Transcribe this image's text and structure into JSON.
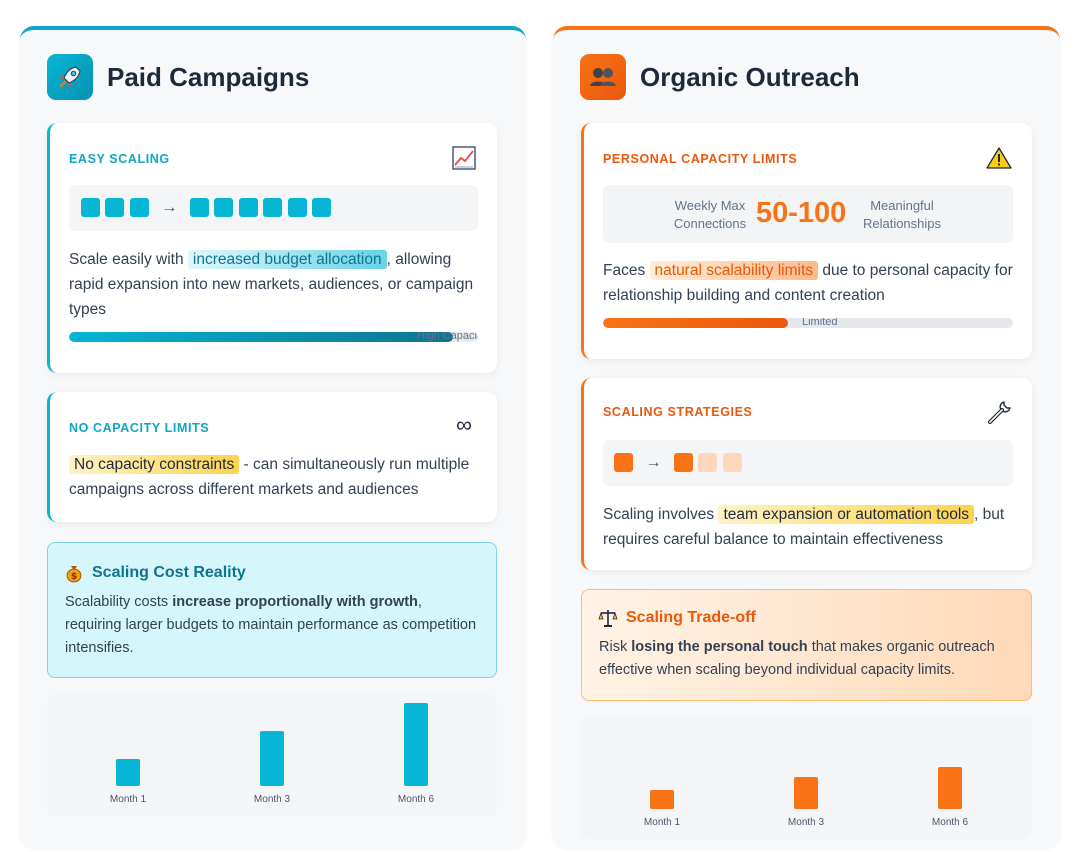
{
  "paid": {
    "title": "Paid Campaigns",
    "icon": "rocket-icon",
    "accent": "#06b6d4",
    "easy_scaling": {
      "label": "EASY SCALING",
      "icon": "chart-increasing-icon",
      "text_before": "Scale easily with ",
      "highlight": "increased budget allocation",
      "text_after": ", allowing rapid expansion into new markets, audiences, or campaign types",
      "bar_label": "High Capacity",
      "bar_level": 0.94
    },
    "no_limits": {
      "label": "NO CAPACITY LIMITS",
      "icon": "infinity-icon",
      "icon_glyph": "∞",
      "highlight": "No capacity constraints",
      "text_after": " - can simultaneously run multiple campaigns across different markets and audiences"
    },
    "note": {
      "icon": "money-bag-icon",
      "title": "Scaling Cost Reality",
      "text_before": "Scalability costs ",
      "text_bold": "increase proportionally with growth",
      "text_after": ", requiring larger budgets to maintain performance as competition intensifies."
    },
    "chart_data": {
      "type": "bar",
      "categories": [
        "Month 1",
        "Month 3",
        "Month 6"
      ],
      "values": [
        27,
        55,
        83
      ],
      "color": "#06b6d4"
    }
  },
  "organic": {
    "title": "Organic Outreach",
    "icon": "people-icon",
    "accent": "#f97316",
    "capacity": {
      "label": "PERSONAL CAPACITY LIMITS",
      "icon": "warning-icon",
      "metric_left": [
        "Weekly Max",
        "Connections"
      ],
      "metric_value": "50-100",
      "metric_right": [
        "Meaningful",
        "Relationships"
      ],
      "text_before": "Faces ",
      "highlight": "natural scalability limits",
      "text_after": " due to personal capacity for relationship building and content creation",
      "bar_label": "Limited",
      "bar_level": 0.45
    },
    "strategies": {
      "label": "SCALING STRATEGIES",
      "icon": "wrench-icon",
      "text_before": "Scaling involves ",
      "highlight": "team expansion or automation tools",
      "text_after": ", but requires careful balance to maintain effectiveness"
    },
    "note": {
      "icon": "balance-scale-icon",
      "title": "Scaling Trade-off",
      "text_before": "Risk ",
      "text_bold": "losing the personal touch",
      "text_after": " that makes organic outreach effective when scaling beyond individual capacity limits."
    },
    "chart_data": {
      "type": "bar",
      "categories": [
        "Month 1",
        "Month 3",
        "Month 6"
      ],
      "values": [
        19,
        32,
        42
      ],
      "color": "#f97316"
    }
  }
}
